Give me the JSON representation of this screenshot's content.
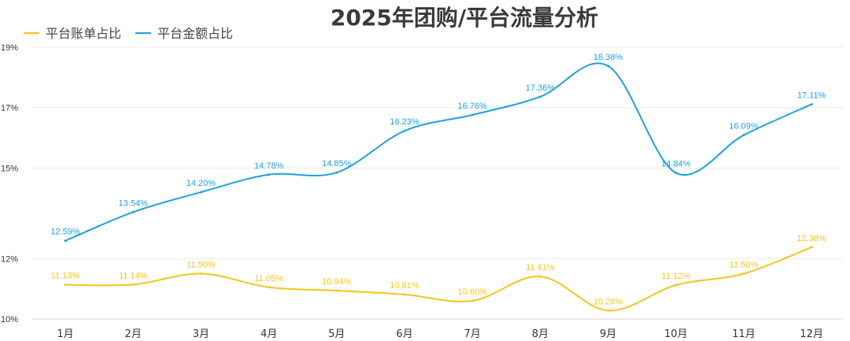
{
  "chart_data": {
    "type": "line",
    "title": "2025年团购/平台流量分析",
    "xlabel": "",
    "ylabel": "",
    "categories": [
      "1月",
      "2月",
      "3月",
      "4月",
      "5月",
      "6月",
      "7月",
      "8月",
      "9月",
      "10月",
      "11月",
      "12月"
    ],
    "ylim": [
      10,
      19
    ],
    "yticks": [
      10,
      12,
      15,
      17,
      19
    ],
    "ytick_labels": [
      "10%",
      "12%",
      "15%",
      "17%",
      "19%"
    ],
    "legend_position": "top-left",
    "series": [
      {
        "name": "平台账单占比",
        "color": "#F5C518",
        "values": [
          11.13,
          11.14,
          11.5,
          11.05,
          10.94,
          10.81,
          10.6,
          11.41,
          10.28,
          11.12,
          11.5,
          12.38
        ],
        "labels": [
          "11.13%",
          "11.14%",
          "11.50%",
          "11.05%",
          "10.94%",
          "10.81%",
          "10.60%",
          "11.41%",
          "10.28%",
          "11.12%",
          "11.50%",
          "12.38%"
        ]
      },
      {
        "name": "平台金额占比",
        "color": "#1BA1E2",
        "values": [
          12.59,
          13.54,
          14.2,
          14.78,
          14.85,
          16.23,
          16.76,
          17.36,
          18.38,
          14.84,
          16.09,
          17.11
        ],
        "labels": [
          "12.59%",
          "13.54%",
          "14.20%",
          "14.78%",
          "14.85%",
          "16.23%",
          "16.76%",
          "17.36%",
          "18.38%",
          "14.84%",
          "16.09%",
          "17.11%"
        ]
      }
    ]
  }
}
